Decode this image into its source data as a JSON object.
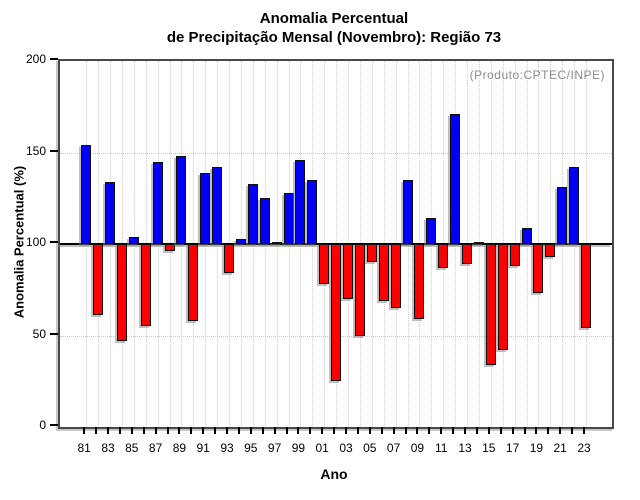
{
  "title": {
    "line1": "Anomalia Percentual",
    "line2": "de Precipitação Mensal (Novembro): Região 73"
  },
  "colors": {
    "positive_bar": "#0000f5",
    "negative_bar": "#fa0000",
    "bar_outline": "#101010",
    "grid": "#c8c8c8",
    "frame": "#484848",
    "annotation_text": "#8c8c8c"
  },
  "chart_data": {
    "type": "bar",
    "title": "Anomalia Percentual de Precipitação Mensal (Novembro): Região 73",
    "xlabel": "Ano",
    "ylabel": "Anomalia Percentual (%)",
    "annotation": "(Produto:CPTEC/INPE)",
    "ylim": [
      0,
      200
    ],
    "yticks": [
      0,
      50,
      100,
      150,
      200
    ],
    "baseline": 100,
    "hgrid_values": [
      50,
      150
    ],
    "grid": "dotted light-gray; vertical line at every year, horizontal at 50 and 150",
    "legend": "none; blue = above 100%, red = below 100%",
    "categories": [
      "81",
      "82",
      "83",
      "84",
      "85",
      "86",
      "87",
      "88",
      "89",
      "90",
      "91",
      "92",
      "93",
      "94",
      "95",
      "96",
      "97",
      "98",
      "99",
      "00",
      "01",
      "02",
      "03",
      "04",
      "05",
      "06",
      "07",
      "08",
      "09",
      "10",
      "11",
      "12",
      "13",
      "14",
      "15",
      "16",
      "17",
      "18",
      "19",
      "20",
      "21",
      "22",
      "23"
    ],
    "x_labeled_every": 2,
    "values": [
      154,
      61,
      134,
      47,
      104,
      55,
      145,
      96,
      148,
      58,
      139,
      142,
      84,
      103,
      133,
      125,
      100,
      128,
      146,
      135,
      78,
      25,
      70,
      50,
      90,
      69,
      65,
      135,
      59,
      114,
      87,
      171,
      89,
      101,
      34,
      42,
      88,
      109,
      73,
      93,
      131,
      142,
      54
    ]
  }
}
